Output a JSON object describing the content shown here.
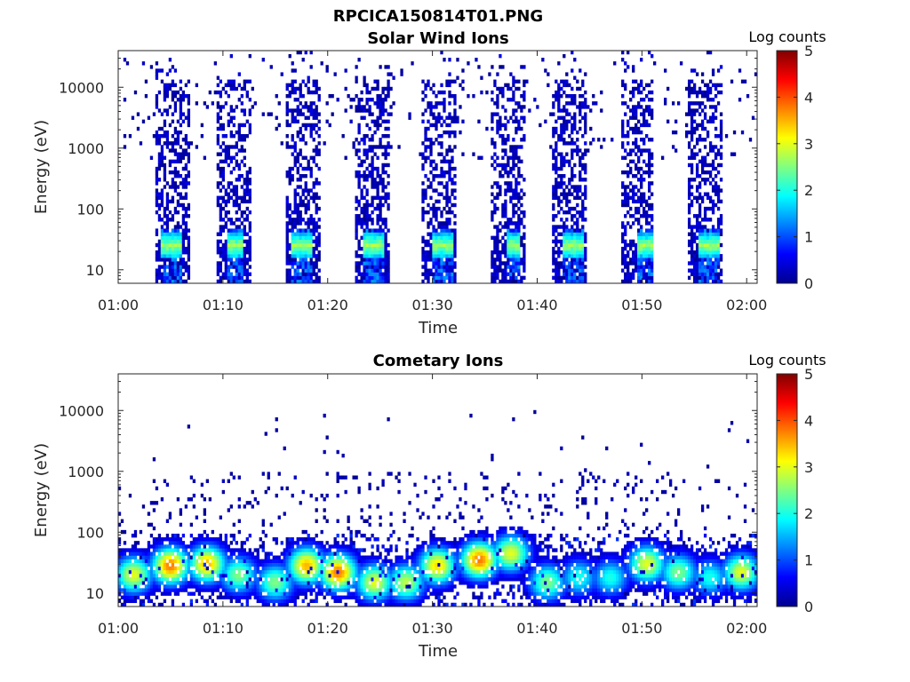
{
  "figure_title": "RPCICA150814T01.PNG",
  "colormap": [
    "#00008f",
    "#0000ff",
    "#0080ff",
    "#00ffff",
    "#80ff80",
    "#ffff00",
    "#ff8000",
    "#ff0000",
    "#800000"
  ],
  "chart_data": [
    {
      "type": "heatmap",
      "title": "Solar Wind Ions",
      "xlabel": "Time",
      "ylabel": "Energy (eV)",
      "x_ticks": [
        "01:00",
        "01:10",
        "01:20",
        "01:30",
        "01:40",
        "01:50",
        "02:00"
      ],
      "xlim_minutes": [
        0,
        61
      ],
      "y_scale": "log",
      "y_ticks": [
        10,
        100,
        1000,
        10000
      ],
      "y_tick_labels": [
        "10",
        "100",
        "1000",
        "10000"
      ],
      "ylim": [
        6,
        40000
      ],
      "colorbar": {
        "label": "Log counts",
        "range": [
          0,
          5
        ],
        "ticks": [
          "0",
          "1",
          "2",
          "3",
          "4",
          "5"
        ]
      },
      "energy_sweep_bursts_min": [
        [
          3.5,
          6.8
        ],
        [
          9.5,
          12.8
        ],
        [
          16.0,
          19.2
        ],
        [
          22.5,
          25.8
        ],
        [
          29.0,
          32.2
        ],
        [
          35.5,
          38.8
        ],
        [
          41.5,
          44.8
        ],
        [
          48.0,
          51.2
        ],
        [
          54.5,
          57.8
        ]
      ],
      "peak_bursts_min": [
        [
          4.0,
          6.0
        ],
        [
          10.5,
          12.0
        ],
        [
          16.5,
          18.5
        ],
        [
          23.5,
          25.5
        ],
        [
          30.0,
          32.0
        ],
        [
          37.0,
          38.5
        ],
        [
          42.5,
          44.5
        ],
        [
          49.5,
          51.0
        ],
        [
          55.5,
          57.5
        ]
      ],
      "peak_energy_eV": 25,
      "peak_log_counts": 2.5
    },
    {
      "type": "heatmap",
      "title": "Cometary Ions",
      "xlabel": "Time",
      "ylabel": "Energy (eV)",
      "x_ticks": [
        "01:00",
        "01:10",
        "01:20",
        "01:30",
        "01:40",
        "01:50",
        "02:00"
      ],
      "xlim_minutes": [
        0,
        61
      ],
      "y_scale": "log",
      "y_ticks": [
        10,
        100,
        1000,
        10000
      ],
      "y_tick_labels": [
        "10",
        "100",
        "1000",
        "10000"
      ],
      "ylim": [
        6,
        40000
      ],
      "colorbar": {
        "label": "Log counts",
        "range": [
          0,
          5
        ],
        "ticks": [
          "0",
          "1",
          "2",
          "3",
          "4",
          "5"
        ]
      },
      "hotspots": [
        {
          "t": 1.5,
          "e": 20,
          "v": 3.0
        },
        {
          "t": 5.0,
          "e": 28,
          "v": 3.8
        },
        {
          "t": 8.5,
          "e": 30,
          "v": 3.5
        },
        {
          "t": 11.5,
          "e": 20,
          "v": 2.5
        },
        {
          "t": 15.0,
          "e": 15,
          "v": 2.5
        },
        {
          "t": 18.0,
          "e": 28,
          "v": 3.5
        },
        {
          "t": 21.0,
          "e": 22,
          "v": 3.8
        },
        {
          "t": 24.5,
          "e": 15,
          "v": 3.0
        },
        {
          "t": 27.5,
          "e": 15,
          "v": 2.8
        },
        {
          "t": 30.5,
          "e": 28,
          "v": 3.3
        },
        {
          "t": 34.5,
          "e": 35,
          "v": 3.8
        },
        {
          "t": 37.5,
          "e": 45,
          "v": 3.0
        },
        {
          "t": 41.0,
          "e": 15,
          "v": 2.5
        },
        {
          "t": 44.0,
          "e": 18,
          "v": 2.0
        },
        {
          "t": 47.0,
          "e": 18,
          "v": 2.0
        },
        {
          "t": 50.5,
          "e": 30,
          "v": 3.0
        },
        {
          "t": 53.5,
          "e": 22,
          "v": 2.5
        },
        {
          "t": 56.5,
          "e": 18,
          "v": 2.0
        },
        {
          "t": 59.5,
          "e": 22,
          "v": 3.0
        }
      ]
    }
  ]
}
